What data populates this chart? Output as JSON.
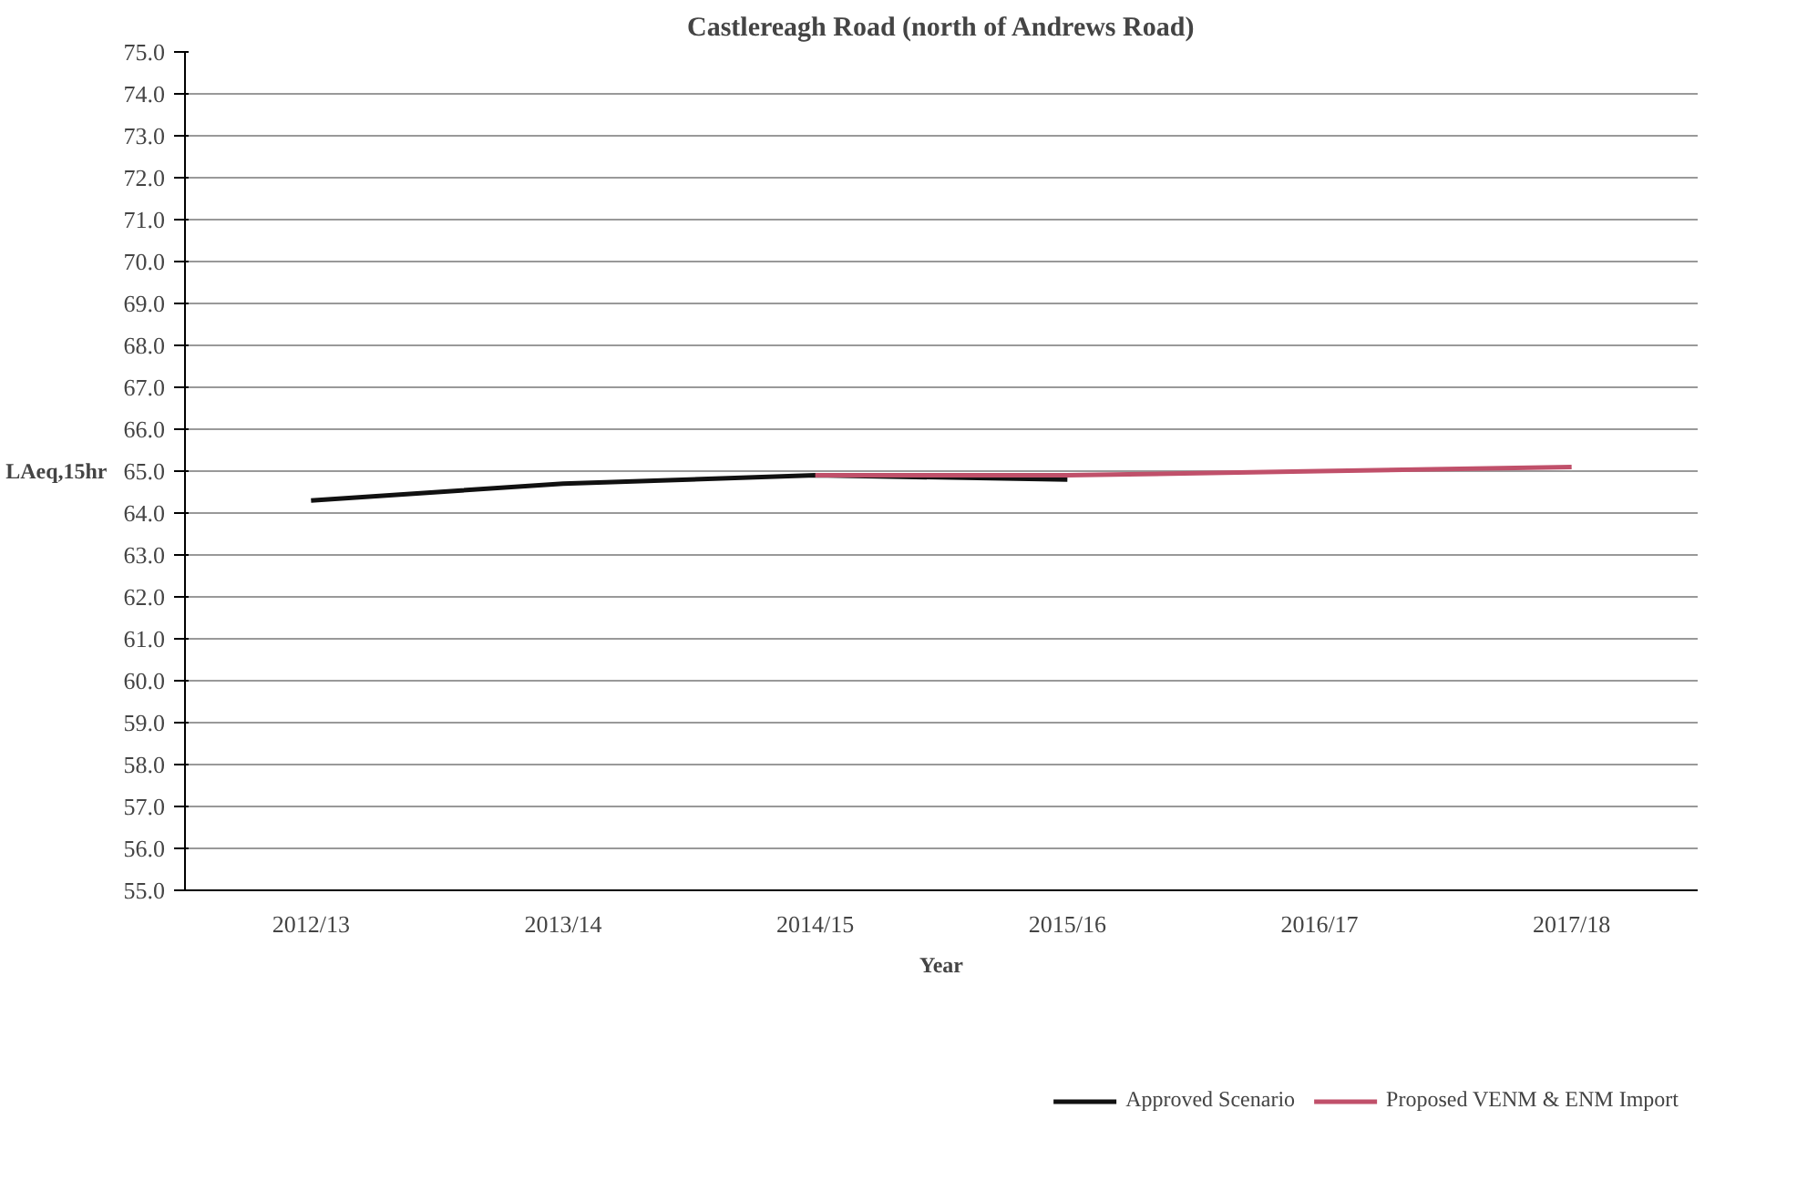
{
  "chart_data": {
    "type": "line",
    "title": "Castlereagh Road (north of Andrews Road)",
    "xlabel": "Year",
    "ylabel": "LAeq,15hr",
    "categories": [
      "2012/13",
      "2013/14",
      "2014/15",
      "2015/16",
      "2016/17",
      "2017/18"
    ],
    "series": [
      {
        "name": "Approved Scenario",
        "color": "#111111",
        "values": [
          64.3,
          64.7,
          64.9,
          64.8,
          null,
          null
        ]
      },
      {
        "name": "Proposed VENM & ENM Import",
        "color": "#c0506a",
        "values": [
          null,
          null,
          64.9,
          64.9,
          65.0,
          65.1
        ]
      }
    ],
    "ylim": [
      55.0,
      75.0
    ],
    "yticks": [
      {
        "value": 55,
        "label": "55.0"
      },
      {
        "value": 56,
        "label": "56.0"
      },
      {
        "value": 57,
        "label": "57.0"
      },
      {
        "value": 58,
        "label": "58.0"
      },
      {
        "value": 59,
        "label": "59.0"
      },
      {
        "value": 60,
        "label": "60.0"
      },
      {
        "value": 61,
        "label": "61.0"
      },
      {
        "value": 62,
        "label": "62.0"
      },
      {
        "value": 63,
        "label": "63.0"
      },
      {
        "value": 64,
        "label": "64.0"
      },
      {
        "value": 65,
        "label": "65.0"
      },
      {
        "value": 66,
        "label": "66.0"
      },
      {
        "value": 67,
        "label": "67.0"
      },
      {
        "value": 68,
        "label": "68.0"
      },
      {
        "value": 69,
        "label": "69.0"
      },
      {
        "value": 70,
        "label": "70.0"
      },
      {
        "value": 71,
        "label": "71.0"
      },
      {
        "value": 72,
        "label": "72.0"
      },
      {
        "value": 73,
        "label": "73.0"
      },
      {
        "value": 74,
        "label": "74.0"
      },
      {
        "value": 75,
        "label": "75.0"
      }
    ],
    "grid": "y",
    "legend": "bottom",
    "marker": "none",
    "line_style": "solid"
  }
}
